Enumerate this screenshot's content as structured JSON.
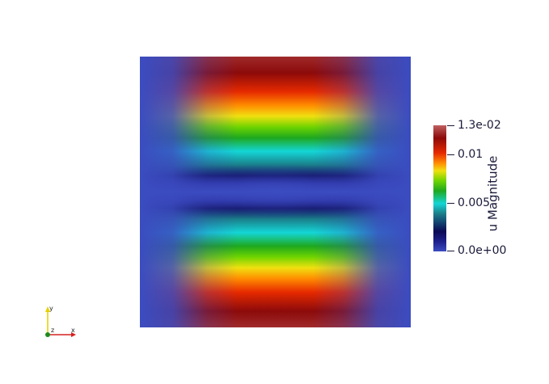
{
  "colorbar": {
    "title": "u Magnitude",
    "min_value": 0.0,
    "max_value": 0.013,
    "ticks": [
      {
        "value": 0.013,
        "label": "1.3e-02"
      },
      {
        "value": 0.01,
        "label": "0.01"
      },
      {
        "value": 0.005,
        "label": "0.005"
      },
      {
        "value": 0.0,
        "label": "0.0e+00"
      }
    ],
    "colors": [
      "#3b4cc0",
      "#1e1f8a",
      "#0a0a55",
      "#1a7f8a",
      "#14d6d6",
      "#1ea81e",
      "#6fd400",
      "#f0e010",
      "#ff8c00",
      "#e62a00",
      "#8c0a0a",
      "#c06060"
    ]
  },
  "orientation_axes": {
    "x_label": "x",
    "y_label": "y",
    "z_label": "z",
    "x_color": "#d62020",
    "y_color": "#e6d000",
    "z_color": "#1e8a1e"
  }
}
